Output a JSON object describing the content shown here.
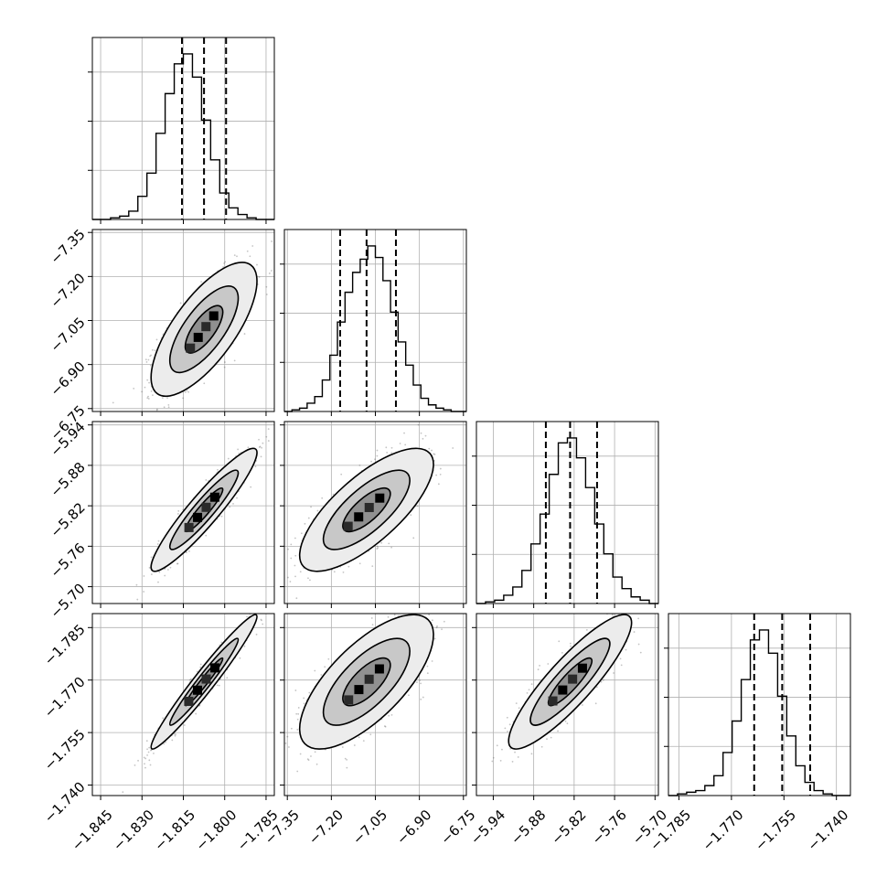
{
  "chart_data": {
    "type": "corner",
    "grid": true,
    "x_tick_labels": [
      [
        "−1.845",
        "−1.830",
        "−1.815",
        "−1.800",
        "−1.785"
      ],
      [
        "−7.35",
        "−7.20",
        "−7.05",
        "−6.90",
        "−6.75"
      ],
      [
        "−5.94",
        "−5.88",
        "−5.82",
        "−5.76",
        "−5.70"
      ],
      [
        "−1.785",
        "−1.770",
        "−1.755",
        "−1.740"
      ]
    ],
    "y_tick_labels": [
      [],
      [
        "−6.75",
        "−6.90",
        "−7.05",
        "−7.20",
        "−7.35"
      ],
      [
        "−5.70",
        "−5.76",
        "−5.82",
        "−5.88",
        "−5.94"
      ],
      [
        "−1.740",
        "−1.755",
        "−1.770",
        "−1.785"
      ]
    ],
    "parameters": [
      {
        "range": [
          -1.848,
          -1.782
        ],
        "x_ticks": [
          -1.845,
          -1.83,
          -1.815,
          -1.8,
          -1.785
        ],
        "quantiles": [
          -1.8155,
          -1.8075,
          -1.7995
        ],
        "hist_bins": [
          0,
          0,
          1,
          2,
          5,
          14,
          28,
          52,
          76,
          94,
          100,
          86,
          60,
          36,
          16,
          7,
          3,
          1,
          0,
          0
        ]
      },
      {
        "range": [
          -7.36,
          -6.74
        ],
        "x_ticks": [
          -7.35,
          -7.2,
          -7.05,
          -6.9,
          -6.75
        ],
        "quantiles": [
          -7.17,
          -7.08,
          -6.98
        ],
        "hist_bins": [
          0,
          1,
          2,
          5,
          9,
          19,
          34,
          54,
          72,
          84,
          92,
          100,
          93,
          79,
          60,
          42,
          28,
          16,
          8,
          4,
          2,
          1,
          0,
          0
        ]
      },
      {
        "range": [
          -5.965,
          -5.695
        ],
        "x_ticks": [
          -5.94,
          -5.88,
          -5.82,
          -5.76,
          -5.7
        ],
        "quantiles": [
          -5.862,
          -5.826,
          -5.786
        ],
        "hist_bins": [
          0,
          1,
          2,
          5,
          10,
          20,
          36,
          54,
          78,
          97,
          100,
          88,
          70,
          48,
          30,
          16,
          9,
          4,
          2,
          0
        ]
      },
      {
        "range": [
          -1.788,
          -1.736
        ],
        "x_ticks": [
          -1.785,
          -1.77,
          -1.755,
          -1.74
        ],
        "quantiles": [
          -1.7635,
          -1.7555,
          -1.7475
        ],
        "hist_bins": [
          0,
          1,
          2,
          3,
          6,
          12,
          26,
          45,
          70,
          94,
          100,
          86,
          60,
          36,
          18,
          8,
          3,
          1,
          0,
          0
        ]
      }
    ],
    "correlations": [
      [
        1.0,
        0.72,
        0.93,
        0.97
      ],
      [
        0.72,
        1.0,
        0.74,
        0.7
      ],
      [
        0.93,
        0.74,
        1.0,
        0.88
      ],
      [
        0.97,
        0.7,
        0.88,
        1.0
      ]
    ],
    "hist_line_color": "#000000",
    "grid_color": "#b0b0b0",
    "scatter_color": "#555555",
    "contour_line_color": "#000000",
    "contour_fill_colors": [
      "#ececec",
      "#c8c8c8",
      "#909090"
    ],
    "density_core_color": "#000000"
  }
}
